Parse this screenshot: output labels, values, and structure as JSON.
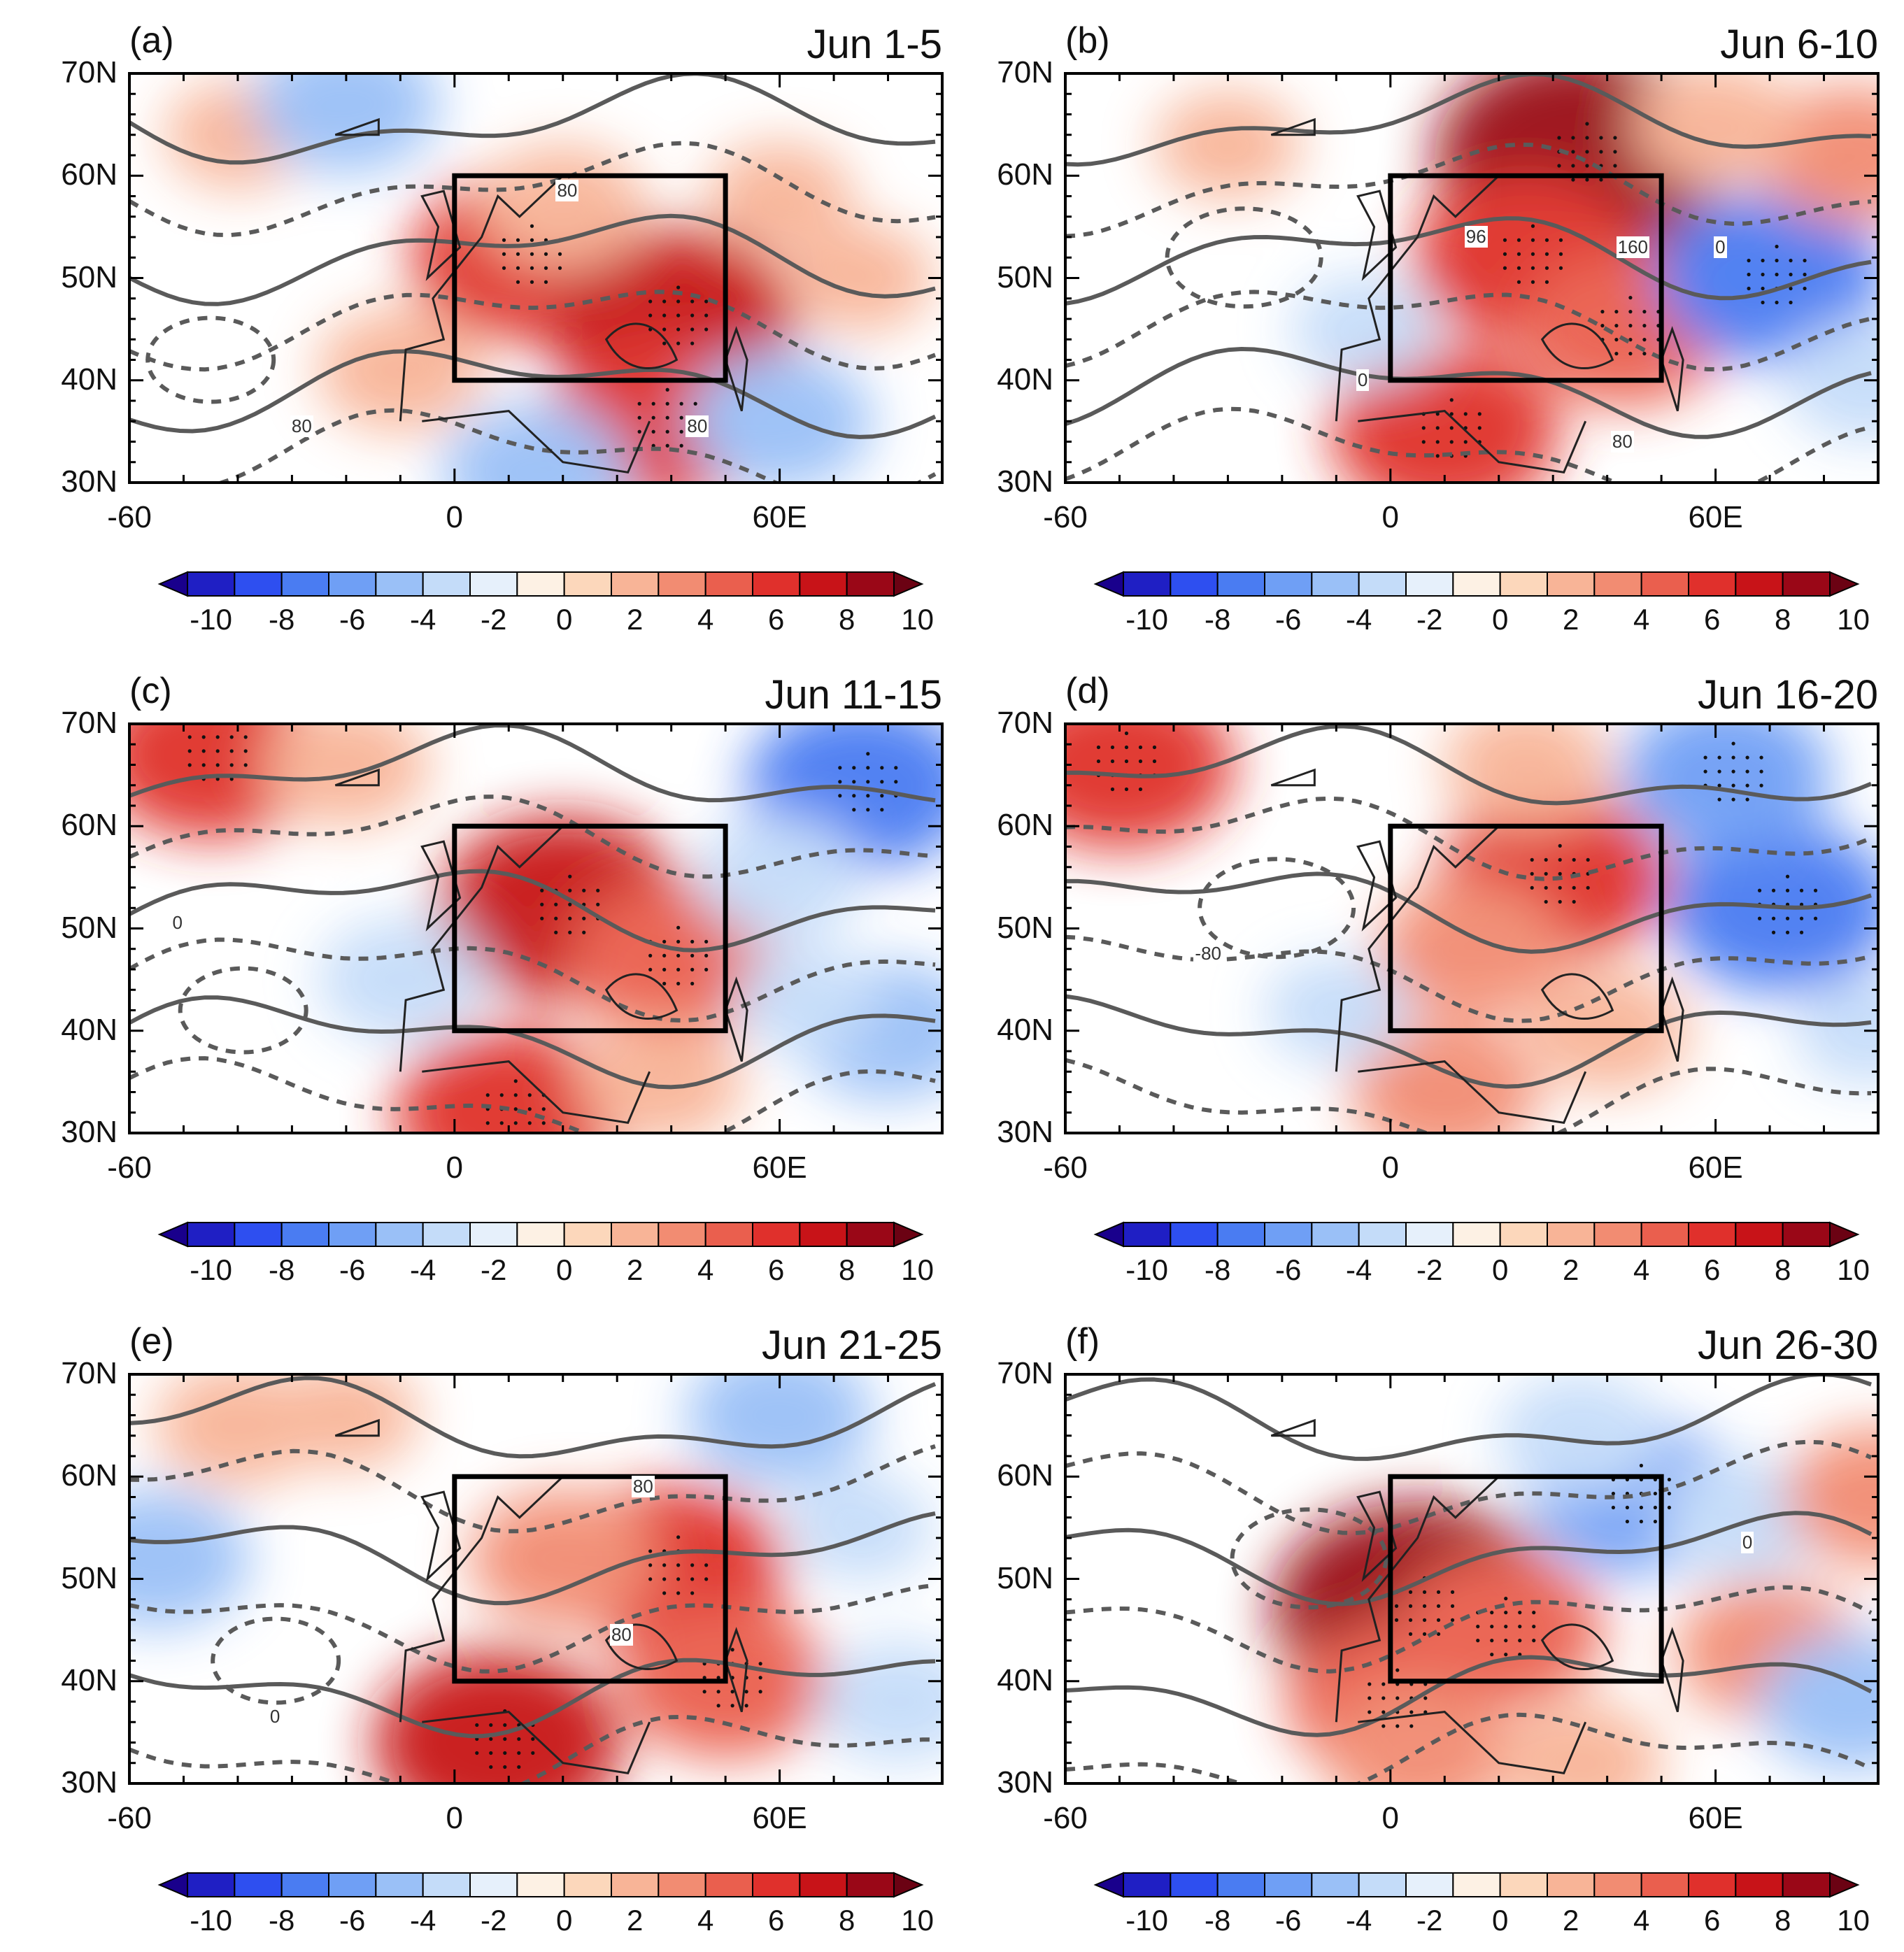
{
  "figure": {
    "type": "multi-panel map",
    "colorbar_ticks": [
      "-10",
      "-8",
      "-6",
      "-4",
      "-2",
      "0",
      "2",
      "4",
      "6",
      "8",
      "10"
    ]
  },
  "colors": {
    "scale": [
      "#19008c",
      "#1f1fc4",
      "#2e4ff0",
      "#4a7cf2",
      "#6f9ff5",
      "#9ac0f7",
      "#c4dcf9",
      "#e6f0fb",
      "#fdf1e4",
      "#fcd7bb",
      "#f8b497",
      "#f28c72",
      "#ea5f4e",
      "#e0302c",
      "#c81318",
      "#9a0717",
      "#6b0213"
    ]
  },
  "chart_data": [
    {
      "type": "map",
      "label": "(a)",
      "title": "Jun 1-5",
      "xticks": [
        "-60",
        "0",
        "60E"
      ],
      "yticks": [
        "70N",
        "60N",
        "50N",
        "40N",
        "30N"
      ],
      "box": {
        "lon": [
          0,
          50
        ],
        "lat": [
          40,
          60
        ]
      },
      "contour_labels": [
        {
          "text": "80",
          "lon": -28,
          "lat": 35.5
        },
        {
          "text": "80",
          "lon": 45,
          "lat": 35.5
        },
        {
          "text": "80",
          "lon": 21,
          "lat": 58.5
        }
      ],
      "anomalies": [
        {
          "lon": 13,
          "lat": 52,
          "value": 6
        },
        {
          "lon": 40,
          "lat": 46,
          "value": 7
        },
        {
          "lon": 38,
          "lat": 36,
          "value": 6
        },
        {
          "lon": 20,
          "lat": 57,
          "value": 3
        },
        {
          "lon": 60,
          "lat": 58,
          "value": 2
        },
        {
          "lon": -40,
          "lat": 64,
          "value": 2
        },
        {
          "lon": -20,
          "lat": 67,
          "value": -4
        },
        {
          "lon": 60,
          "lat": 36,
          "value": -4
        },
        {
          "lon": 15,
          "lat": 31,
          "value": -4
        },
        {
          "lon": -10,
          "lat": 41,
          "value": 3
        },
        {
          "lon": 75,
          "lat": 50,
          "value": 2
        }
      ]
    },
    {
      "type": "map",
      "label": "(b)",
      "title": "Jun 6-10",
      "xticks": [
        "-60",
        "0",
        "60E"
      ],
      "yticks": [
        "70N",
        "60N",
        "50N",
        "40N",
        "30N"
      ],
      "box": {
        "lon": [
          0,
          50
        ],
        "lat": [
          40,
          60
        ]
      },
      "contour_labels": [
        {
          "text": "160",
          "lon": 44,
          "lat": 53
        },
        {
          "text": "80",
          "lon": 43,
          "lat": 34
        },
        {
          "text": "0",
          "lon": 62,
          "lat": 53
        },
        {
          "text": "96",
          "lon": 16,
          "lat": 54
        },
        {
          "text": "0",
          "lon": -4,
          "lat": 40
        }
      ],
      "anomalies": [
        {
          "lon": 35,
          "lat": 62,
          "value": 9
        },
        {
          "lon": 25,
          "lat": 52,
          "value": 6
        },
        {
          "lon": 43,
          "lat": 45,
          "value": 5
        },
        {
          "lon": 10,
          "lat": 35,
          "value": 6
        },
        {
          "lon": 70,
          "lat": 50,
          "value": -6
        },
        {
          "lon": -5,
          "lat": 45,
          "value": -2
        },
        {
          "lon": -30,
          "lat": 63,
          "value": 2
        },
        {
          "lon": 85,
          "lat": 62,
          "value": 4
        },
        {
          "lon": 88,
          "lat": 40,
          "value": -3
        },
        {
          "lon": 60,
          "lat": 65,
          "value": 3
        }
      ]
    },
    {
      "type": "map",
      "label": "(c)",
      "title": "Jun 11-15",
      "xticks": [
        "-60",
        "0",
        "60E"
      ],
      "yticks": [
        "70N",
        "60N",
        "50N",
        "40N",
        "30N"
      ],
      "box": {
        "lon": [
          0,
          50
        ],
        "lat": [
          40,
          60
        ]
      },
      "contour_labels": [
        {
          "text": "0",
          "lon": -50,
          "lat": 50.5
        }
      ],
      "anomalies": [
        {
          "lon": 20,
          "lat": 52,
          "value": 7
        },
        {
          "lon": 40,
          "lat": 47,
          "value": 5
        },
        {
          "lon": 10,
          "lat": 32,
          "value": 6
        },
        {
          "lon": -45,
          "lat": 67,
          "value": 6
        },
        {
          "lon": 75,
          "lat": 64,
          "value": -6
        },
        {
          "lon": 60,
          "lat": 55,
          "value": -3
        },
        {
          "lon": 80,
          "lat": 40,
          "value": -4
        },
        {
          "lon": -10,
          "lat": 45,
          "value": -3
        },
        {
          "lon": -20,
          "lat": 66,
          "value": 3
        },
        {
          "lon": 38,
          "lat": 35,
          "value": 3
        },
        {
          "lon": 65,
          "lat": 43,
          "value": -2
        }
      ]
    },
    {
      "type": "map",
      "label": "(d)",
      "title": "Jun 16-20",
      "xticks": [
        "-60",
        "0",
        "60E"
      ],
      "yticks": [
        "70N",
        "60N",
        "50N",
        "40N",
        "30N"
      ],
      "box": {
        "lon": [
          0,
          50
        ],
        "lat": [
          40,
          60
        ]
      },
      "contour_labels": [
        {
          "text": "-80",
          "lon": -34,
          "lat": 47.5
        }
      ],
      "anomalies": [
        {
          "lon": 30,
          "lat": 55,
          "value": 6
        },
        {
          "lon": 15,
          "lat": 48,
          "value": 4
        },
        {
          "lon": -50,
          "lat": 66,
          "value": 6
        },
        {
          "lon": 72,
          "lat": 52,
          "value": -6
        },
        {
          "lon": 62,
          "lat": 65,
          "value": -5
        },
        {
          "lon": 10,
          "lat": 34,
          "value": 4
        },
        {
          "lon": 40,
          "lat": 40,
          "value": 3
        },
        {
          "lon": 88,
          "lat": 40,
          "value": -2
        },
        {
          "lon": -10,
          "lat": 42,
          "value": -2
        },
        {
          "lon": 25,
          "lat": 66,
          "value": 3
        }
      ]
    },
    {
      "type": "map",
      "label": "(e)",
      "title": "Jun 21-25",
      "xticks": [
        "-60",
        "0",
        "60E"
      ],
      "yticks": [
        "70N",
        "60N",
        "50N",
        "40N",
        "30N"
      ],
      "box": {
        "lon": [
          0,
          50
        ],
        "lat": [
          40,
          60
        ]
      },
      "contour_labels": [
        {
          "text": "80",
          "lon": 35,
          "lat": 59
        },
        {
          "text": "80",
          "lon": 31,
          "lat": 44.5
        },
        {
          "text": "0",
          "lon": -32,
          "lat": 36.5
        }
      ],
      "anomalies": [
        {
          "lon": 40,
          "lat": 51,
          "value": 6
        },
        {
          "lon": 20,
          "lat": 52,
          "value": 4
        },
        {
          "lon": 8,
          "lat": 34,
          "value": 7
        },
        {
          "lon": 50,
          "lat": 40,
          "value": 5
        },
        {
          "lon": 60,
          "lat": 66,
          "value": -4
        },
        {
          "lon": -55,
          "lat": 52,
          "value": -4
        },
        {
          "lon": 82,
          "lat": 38,
          "value": -3
        },
        {
          "lon": -40,
          "lat": 65,
          "value": 3
        },
        {
          "lon": 75,
          "lat": 55,
          "value": -2
        },
        {
          "lon": -20,
          "lat": 66,
          "value": 2
        }
      ]
    },
    {
      "type": "map",
      "label": "(f)",
      "title": "Jun 26-30",
      "xticks": [
        "-60",
        "0",
        "60E"
      ],
      "yticks": [
        "70N",
        "60N",
        "50N",
        "40N",
        "30N"
      ],
      "box": {
        "lon": [
          0,
          50
        ],
        "lat": [
          40,
          60
        ]
      },
      "contour_labels": [
        {
          "text": "0",
          "lon": 67,
          "lat": 53.5
        }
      ],
      "anomalies": [
        {
          "lon": 5,
          "lat": 47,
          "value": 9
        },
        {
          "lon": 20,
          "lat": 45,
          "value": 5
        },
        {
          "lon": 0,
          "lat": 38,
          "value": 5
        },
        {
          "lon": 5,
          "lat": 33,
          "value": 4
        },
        {
          "lon": 45,
          "lat": 58,
          "value": -5
        },
        {
          "lon": 65,
          "lat": 56,
          "value": -3
        },
        {
          "lon": 35,
          "lat": 64,
          "value": -3
        },
        {
          "lon": 70,
          "lat": 43,
          "value": 4
        },
        {
          "lon": 85,
          "lat": 38,
          "value": -4
        },
        {
          "lon": 35,
          "lat": 32,
          "value": 3
        },
        {
          "lon": 90,
          "lat": 58,
          "value": 4
        }
      ]
    }
  ]
}
